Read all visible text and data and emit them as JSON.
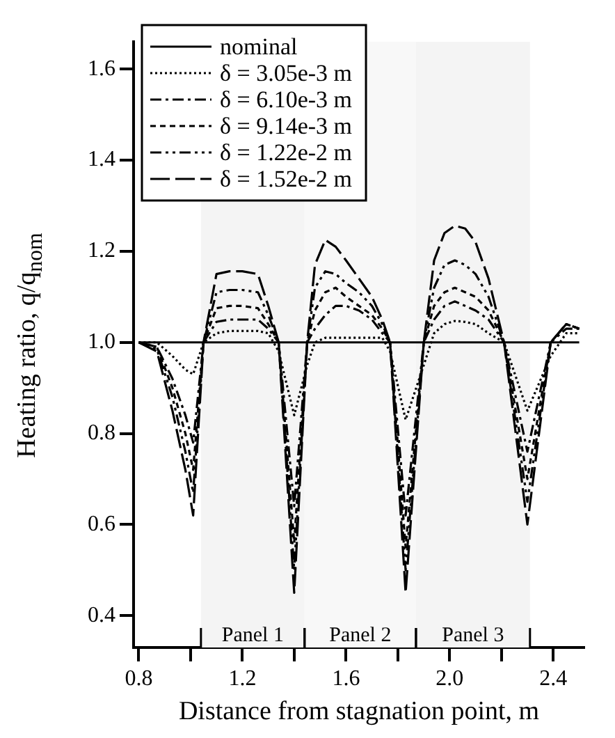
{
  "chart_data": {
    "type": "line",
    "xlabel": "Distance from stagnation point, m",
    "ylabel": "Heating ratio, q/q$_{nom}$",
    "x": [
      0.8,
      0.87,
      0.93,
      0.98,
      1.01,
      1.05,
      1.1,
      1.15,
      1.2,
      1.26,
      1.3,
      1.34,
      1.4,
      1.45,
      1.48,
      1.52,
      1.56,
      1.6,
      1.65,
      1.7,
      1.74,
      1.77,
      1.83,
      1.9,
      1.94,
      1.98,
      2.02,
      2.06,
      2.1,
      2.15,
      2.21,
      2.3,
      2.39,
      2.45,
      2.5
    ],
    "series": [
      {
        "name": "nominal",
        "color": "#000000",
        "line_style": "solid",
        "x": [
          0.8,
          2.5
        ],
        "values": [
          1.0,
          1.0
        ]
      },
      {
        "name": "δ = 3.05e-3 m",
        "color": "#000000",
        "line_style": "dotted",
        "values": [
          1.0,
          1.0,
          0.97,
          0.94,
          0.93,
          1.0,
          1.02,
          1.025,
          1.025,
          1.025,
          1.02,
          0.98,
          0.84,
          0.95,
          1.0,
          1.01,
          1.01,
          1.01,
          1.01,
          1.01,
          1.01,
          0.98,
          0.83,
          0.95,
          1.02,
          1.04,
          1.047,
          1.045,
          1.04,
          1.02,
          1.0,
          0.85,
          0.97,
          1.02,
          1.02
        ]
      },
      {
        "name": "δ = 6.10e-3 m",
        "color": "#000000",
        "line_style": "dashdot",
        "values": [
          1.0,
          0.99,
          0.92,
          0.84,
          0.78,
          1.0,
          1.045,
          1.05,
          1.05,
          1.05,
          1.03,
          1.0,
          0.64,
          1.0,
          1.03,
          1.06,
          1.08,
          1.08,
          1.07,
          1.05,
          1.02,
          1.0,
          0.62,
          1.0,
          1.05,
          1.08,
          1.09,
          1.08,
          1.07,
          1.05,
          1.0,
          0.76,
          1.0,
          1.03,
          1.03
        ]
      },
      {
        "name": "δ = 9.14e-3 m",
        "color": "#000000",
        "line_style": "dashed",
        "values": [
          1.0,
          0.99,
          0.9,
          0.8,
          0.72,
          1.0,
          1.075,
          1.08,
          1.08,
          1.075,
          1.04,
          1.0,
          0.56,
          1.0,
          1.07,
          1.11,
          1.12,
          1.1,
          1.08,
          1.06,
          1.03,
          1.0,
          0.55,
          1.0,
          1.08,
          1.11,
          1.12,
          1.11,
          1.1,
          1.07,
          1.0,
          0.7,
          1.0,
          1.04,
          1.03
        ]
      },
      {
        "name": "δ = 1.22e-2 m",
        "color": "#000000",
        "line_style": "dashdotdot",
        "values": [
          1.0,
          0.985,
          0.88,
          0.76,
          0.67,
          1.0,
          1.11,
          1.115,
          1.115,
          1.11,
          1.06,
          1.0,
          0.5,
          1.0,
          1.12,
          1.156,
          1.15,
          1.13,
          1.11,
          1.08,
          1.04,
          1.0,
          0.5,
          1.0,
          1.12,
          1.17,
          1.18,
          1.17,
          1.15,
          1.1,
          1.0,
          0.65,
          1.0,
          1.04,
          1.03
        ]
      },
      {
        "name": "δ = 1.52e-2 m",
        "color": "#000000",
        "line_style": "longdash",
        "values": [
          1.0,
          0.98,
          0.85,
          0.72,
          0.62,
          1.0,
          1.15,
          1.156,
          1.156,
          1.15,
          1.08,
          1.0,
          0.45,
          1.0,
          1.17,
          1.225,
          1.21,
          1.18,
          1.14,
          1.1,
          1.05,
          1.0,
          0.45,
          1.0,
          1.18,
          1.24,
          1.256,
          1.25,
          1.22,
          1.14,
          1.0,
          0.6,
          1.0,
          1.04,
          1.03
        ]
      }
    ],
    "xlim": [
      0.78,
      2.52
    ],
    "xticks": [
      0.8,
      {
        "value": 1.0,
        "label": null
      },
      1.2,
      {
        "value": 1.4,
        "label": null
      },
      1.6,
      {
        "value": 1.8,
        "label": null
      },
      {
        "value": 2.0,
        "label": "2.0"
      },
      {
        "value": 2.2,
        "label": null
      },
      2.4
    ],
    "ylim": [
      0.33,
      1.66
    ],
    "yticks": [
      0.4,
      0.6,
      0.8,
      {
        "value": 1.0,
        "label": "1.0"
      },
      1.2,
      1.4,
      1.6
    ],
    "bands": [
      {
        "axis": "x",
        "from": 1.04,
        "to": 1.44,
        "label": "Panel 1",
        "color": "#f4f4f4"
      },
      {
        "axis": "x",
        "from": 1.44,
        "to": 1.87,
        "label": "Panel 2",
        "color": "#f8f8f8"
      },
      {
        "axis": "x",
        "from": 1.87,
        "to": 2.31,
        "label": "Panel 3",
        "color": "#f4f4f4"
      }
    ],
    "grid": false,
    "legend": "top left",
    "marker": "none"
  }
}
